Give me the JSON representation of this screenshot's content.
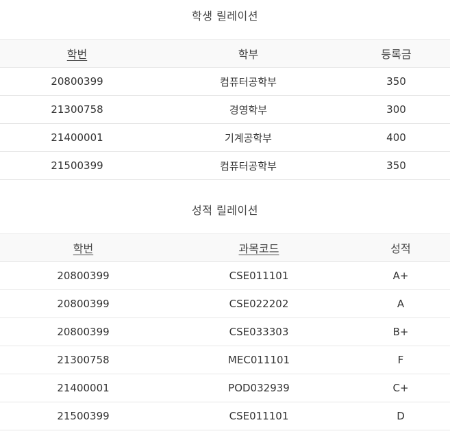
{
  "student_relation": {
    "caption": "학생 릴레이션",
    "headers": [
      "학번",
      "학부",
      "등록금"
    ],
    "rows": [
      [
        "20800399",
        "컴퓨터공학부",
        "350"
      ],
      [
        "21300758",
        "경영학부",
        "300"
      ],
      [
        "21400001",
        "기계공학부",
        "400"
      ],
      [
        "21500399",
        "컴퓨터공학부",
        "350"
      ]
    ]
  },
  "grade_relation": {
    "caption": "성적 릴레이션",
    "headers": [
      "학번",
      "과목코드",
      "성적"
    ],
    "rows": [
      [
        "20800399",
        "CSE011101",
        "A+"
      ],
      [
        "20800399",
        "CSE022202",
        "A"
      ],
      [
        "20800399",
        "CSE033303",
        "B+"
      ],
      [
        "21300758",
        "MEC011101",
        "F"
      ],
      [
        "21400001",
        "POD032939",
        "C+"
      ],
      [
        "21500399",
        "CSE011101",
        "D"
      ]
    ]
  }
}
